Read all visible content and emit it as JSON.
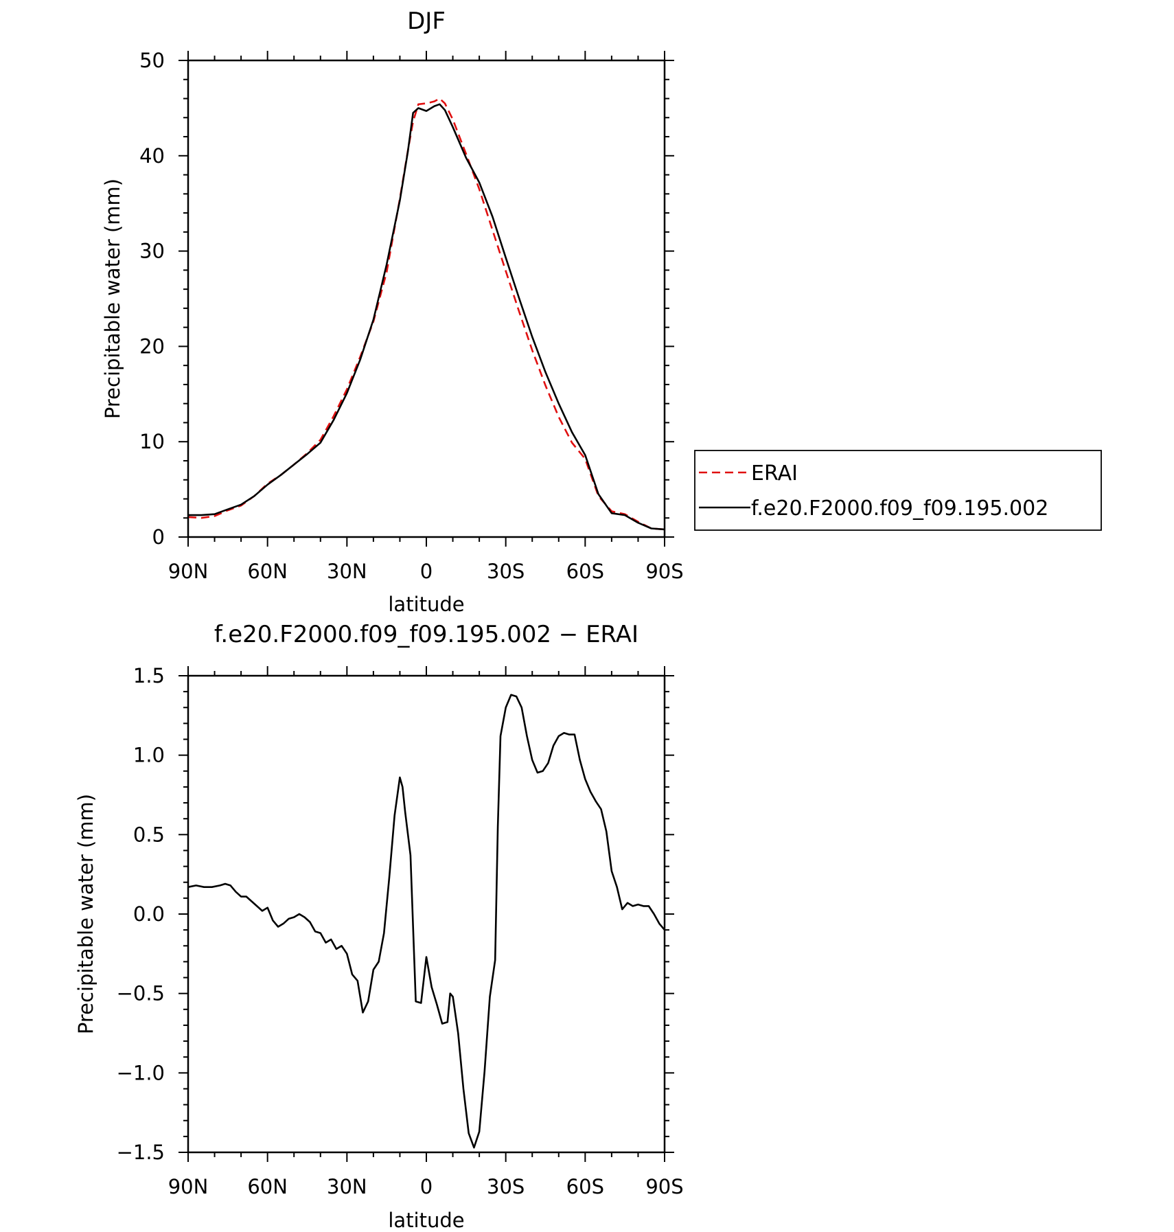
{
  "chart_data": [
    {
      "type": "line",
      "title": "DJF",
      "xlabel": "latitude",
      "ylabel": "Precipitable water (mm)",
      "xlim": [
        90,
        -90
      ],
      "ylim": [
        0,
        50
      ],
      "xticks": [
        90,
        60,
        30,
        0,
        -30,
        -60,
        -90
      ],
      "xticklabels": [
        "90N",
        "60N",
        "30N",
        "0",
        "30S",
        "60S",
        "90S"
      ],
      "yticks": [
        0,
        10,
        20,
        30,
        40,
        50
      ],
      "yticklabels": [
        "0",
        "10",
        "20",
        "30",
        "40",
        "50"
      ],
      "legend_position": "right",
      "series": [
        {
          "name": "ERAI",
          "color": "#e01010",
          "style": "dashed",
          "x": [
            90,
            85,
            80,
            75,
            70,
            65,
            60,
            55,
            50,
            45,
            40,
            35,
            30,
            25,
            20,
            15,
            10,
            7,
            5,
            3,
            0,
            -3,
            -5,
            -7,
            -10,
            -15,
            -20,
            -25,
            -30,
            -35,
            -40,
            -45,
            -50,
            -55,
            -60,
            -65,
            -70,
            -75,
            -80,
            -85,
            -90
          ],
          "y": [
            2.1,
            2.0,
            2.2,
            2.8,
            3.3,
            4.3,
            5.6,
            6.5,
            7.6,
            8.8,
            10.2,
            12.7,
            15.5,
            18.9,
            22.6,
            27.8,
            35.5,
            40.5,
            43.6,
            45.4,
            45.5,
            45.7,
            46.0,
            45.5,
            43.8,
            40.2,
            36.5,
            32.2,
            27.9,
            23.7,
            19.6,
            15.9,
            12.6,
            9.9,
            8.2,
            4.3,
            2.7,
            2.4,
            1.6,
            0.9,
            0.8
          ]
        },
        {
          "name": "f.e20.F2000.f09_f09.195.002",
          "color": "#000000",
          "style": "solid",
          "x": [
            90,
            85,
            80,
            75,
            70,
            65,
            60,
            55,
            50,
            45,
            40,
            35,
            30,
            25,
            20,
            15,
            10,
            7,
            5,
            3,
            0,
            -3,
            -5,
            -7,
            -10,
            -15,
            -20,
            -25,
            -30,
            -35,
            -40,
            -45,
            -50,
            -55,
            -60,
            -65,
            -70,
            -75,
            -80,
            -85,
            -90
          ],
          "y": [
            2.3,
            2.3,
            2.4,
            2.9,
            3.4,
            4.3,
            5.5,
            6.5,
            7.6,
            8.7,
            9.9,
            12.3,
            15.1,
            18.6,
            22.8,
            28.6,
            35.3,
            40.4,
            44.5,
            45.0,
            44.7,
            45.2,
            45.4,
            44.8,
            43.0,
            39.8,
            37.2,
            33.6,
            29.3,
            25.1,
            21.0,
            17.3,
            14.0,
            11.0,
            8.6,
            4.5,
            2.5,
            2.3,
            1.5,
            0.9,
            0.8
          ]
        }
      ]
    },
    {
      "type": "line",
      "title": "f.e20.F2000.f09_f09.195.002 − ERAI",
      "xlabel": "latitude",
      "ylabel": "Precipitable water (mm)",
      "xlim": [
        90,
        -90
      ],
      "ylim": [
        -1.5,
        1.5
      ],
      "xticks": [
        90,
        60,
        30,
        0,
        -30,
        -60,
        -90
      ],
      "xticklabels": [
        "90N",
        "60N",
        "30N",
        "0",
        "30S",
        "60S",
        "90S"
      ],
      "yticks": [
        1.5,
        1.0,
        0.5,
        0.0,
        -0.5,
        -1.0,
        -1.5
      ],
      "yticklabels": [
        "1.5",
        "1.0",
        "0.5",
        "0.0",
        "−0.5",
        "−1.0",
        "−1.5"
      ],
      "series": [
        {
          "color": "#000000",
          "style": "solid",
          "x": [
            90,
            87,
            84,
            81,
            78,
            76,
            74,
            72,
            70,
            68,
            66,
            64,
            62,
            60,
            58,
            56,
            54,
            52,
            50,
            48,
            46,
            44,
            42,
            40,
            38,
            36,
            34,
            32,
            30,
            28,
            26,
            24,
            22,
            20,
            18,
            16,
            14,
            12,
            10,
            9,
            8,
            6,
            4,
            2,
            0,
            -2,
            -4,
            -6,
            -8,
            -9,
            -10,
            -12,
            -14,
            -16,
            -18,
            -20,
            -22,
            -24,
            -26,
            -27,
            -28,
            -30,
            -32,
            -34,
            -36,
            -38,
            -40,
            -42,
            -44,
            -46,
            -48,
            -50,
            -52,
            -54,
            -56,
            -58,
            -60,
            -62,
            -64,
            -66,
            -68,
            -70,
            -72,
            -74,
            -76,
            -78,
            -80,
            -82,
            -84,
            -86,
            -88,
            -90
          ],
          "y": [
            0.17,
            0.18,
            0.17,
            0.17,
            0.18,
            0.19,
            0.18,
            0.14,
            0.11,
            0.11,
            0.08,
            0.05,
            0.02,
            0.04,
            -0.04,
            -0.08,
            -0.06,
            -0.03,
            -0.02,
            0.0,
            -0.02,
            -0.05,
            -0.11,
            -0.12,
            -0.18,
            -0.16,
            -0.22,
            -0.2,
            -0.25,
            -0.38,
            -0.42,
            -0.62,
            -0.55,
            -0.35,
            -0.3,
            -0.12,
            0.23,
            0.62,
            0.86,
            0.8,
            0.64,
            0.37,
            -0.55,
            -0.56,
            -0.27,
            -0.46,
            -0.57,
            -0.69,
            -0.68,
            -0.5,
            -0.52,
            -0.75,
            -1.1,
            -1.38,
            -1.47,
            -1.37,
            -0.99,
            -0.52,
            -0.29,
            0.55,
            1.12,
            1.3,
            1.38,
            1.37,
            1.3,
            1.12,
            0.97,
            0.89,
            0.9,
            0.95,
            1.06,
            1.12,
            1.14,
            1.13,
            1.13,
            0.97,
            0.85,
            0.77,
            0.71,
            0.66,
            0.52,
            0.27,
            0.17,
            0.03,
            0.07,
            0.05,
            0.06,
            0.05,
            0.05,
            0.0,
            -0.06,
            -0.1
          ]
        }
      ]
    }
  ]
}
